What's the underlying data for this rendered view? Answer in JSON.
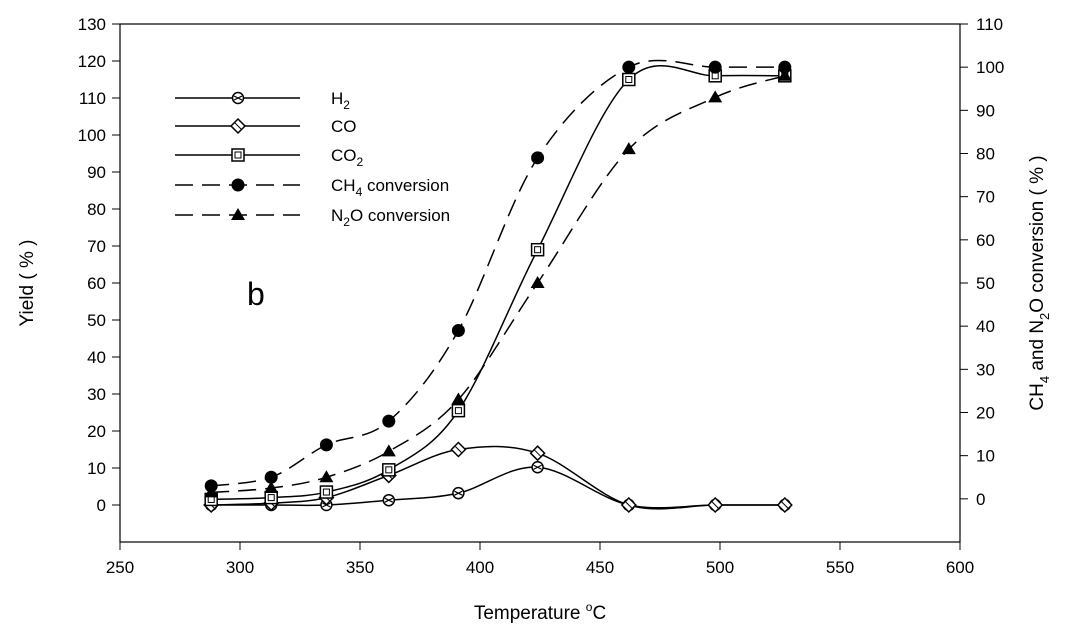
{
  "chart_data": {
    "type": "line",
    "panel_label": "b",
    "xlabel": {
      "main": "Temperature ",
      "sup": "o",
      "tail": "C"
    },
    "ylabel_left": "Yield ( % )",
    "ylabel_right": {
      "p1": "CH",
      "s1": "4",
      "p2": " and N",
      "s2": "2",
      "p3": "O conversion  ( % )"
    },
    "xlim": [
      250,
      600
    ],
    "ylim_left": [
      -10,
      130
    ],
    "ylim_right": [
      -10,
      110
    ],
    "xticks": [
      250,
      300,
      350,
      400,
      450,
      500,
      550,
      600
    ],
    "yticks_left": [
      0,
      10,
      20,
      30,
      40,
      50,
      60,
      70,
      80,
      90,
      100,
      110,
      120,
      130
    ],
    "yticks_right": [
      0,
      10,
      20,
      30,
      40,
      50,
      60,
      70,
      80,
      90,
      100,
      110
    ],
    "legend_position": "top-left",
    "series": [
      {
        "name": "H2",
        "legend": {
          "main": "H",
          "sub": "2",
          "tail": ""
        },
        "axis": "left",
        "marker": "hexcircle",
        "dash": "solid",
        "x": [
          288,
          313,
          336,
          362,
          391,
          424,
          462,
          498,
          527
        ],
        "y": [
          0,
          0,
          0,
          1.3,
          3.2,
          10.2,
          0,
          0,
          0
        ]
      },
      {
        "name": "CO",
        "legend": {
          "main": "CO",
          "sub": "",
          "tail": ""
        },
        "axis": "left",
        "marker": "diamond",
        "dash": "solid",
        "x": [
          288,
          313,
          336,
          362,
          391,
          424,
          462,
          498,
          527
        ],
        "y": [
          0,
          0.5,
          2,
          8,
          15,
          14,
          0,
          0,
          0
        ]
      },
      {
        "name": "CO2",
        "legend": {
          "main": "CO",
          "sub": "2",
          "tail": ""
        },
        "axis": "left",
        "marker": "square",
        "dash": "solid",
        "x": [
          288,
          313,
          336,
          362,
          391,
          424,
          462,
          498,
          527
        ],
        "y": [
          1.5,
          2,
          3.5,
          9.5,
          25.5,
          69,
          115,
          116,
          116
        ]
      },
      {
        "name": "CH4 conversion",
        "legend": {
          "main": "CH",
          "sub": "4",
          "tail": " conversion"
        },
        "axis": "right",
        "marker": "circle",
        "dash": "dashed",
        "x": [
          288,
          313,
          336,
          362,
          391,
          424,
          462,
          498,
          527
        ],
        "y": [
          3,
          5,
          12.5,
          18,
          39,
          79,
          100,
          100,
          100
        ]
      },
      {
        "name": "N2O conversion",
        "legend": {
          "main": " N",
          "sub": "2",
          "tail": "O conversion"
        },
        "axis": "right",
        "marker": "triangle",
        "dash": "dashed",
        "x": [
          288,
          313,
          336,
          362,
          391,
          424,
          462,
          498,
          527
        ],
        "y": [
          1.5,
          2.5,
          5,
          11,
          23,
          50,
          81,
          93,
          98
        ]
      }
    ]
  }
}
